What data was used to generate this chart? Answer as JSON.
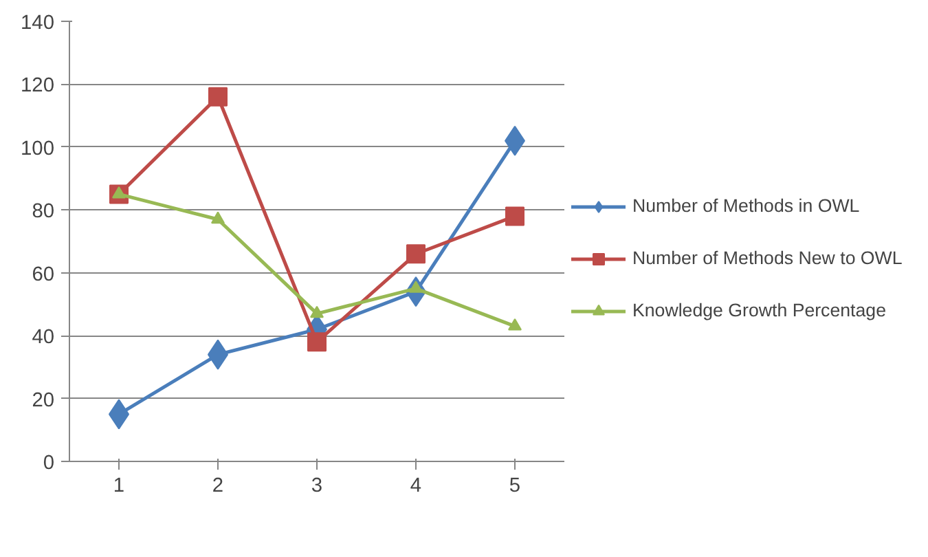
{
  "chart_data": {
    "type": "line",
    "categories": [
      "1",
      "2",
      "3",
      "4",
      "5"
    ],
    "ylim": [
      0,
      140
    ],
    "yticks": [
      0,
      20,
      40,
      60,
      80,
      100,
      120,
      140
    ],
    "grid": "y",
    "legend": "right",
    "series": [
      {
        "name": "Number of Methods in OWL",
        "color": "#4a7ebb",
        "marker": "diamond",
        "values": [
          15,
          34,
          42,
          54,
          102
        ]
      },
      {
        "name": "Number of Methods New to OWL",
        "color": "#be4b48",
        "marker": "square",
        "values": [
          85,
          116,
          38,
          66,
          78
        ]
      },
      {
        "name": "Knowledge Growth Percentage",
        "color": "#98b954",
        "marker": "triangle",
        "values": [
          85,
          77,
          47,
          55,
          43
        ]
      }
    ]
  }
}
